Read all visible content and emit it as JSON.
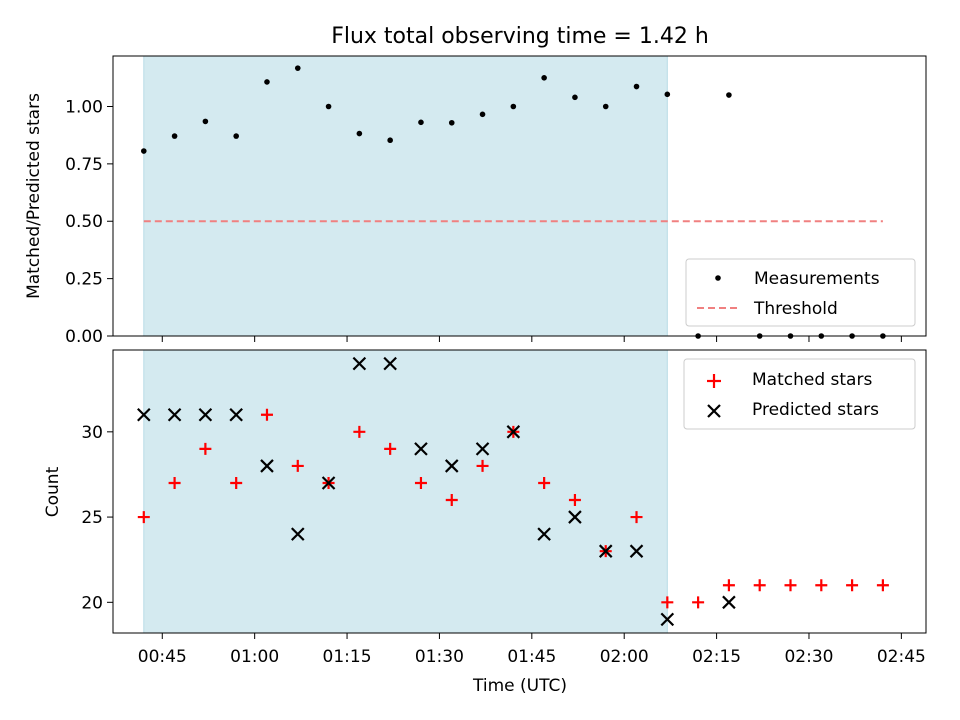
{
  "figure": {
    "title": "Flux total observing time = 1.42 h",
    "xlabel": "Time (UTC)"
  },
  "chart_data": [
    {
      "type": "scatter",
      "ylabel": "Matched/Predicted stars",
      "ylim": [
        0,
        1.22
      ],
      "xlim": [
        "00:37",
        "02:49"
      ],
      "yticks": [
        {
          "v": 0,
          "label": "0.00"
        },
        {
          "v": 0.25,
          "label": "0.25"
        },
        {
          "v": 0.5,
          "label": "0.50"
        },
        {
          "v": 0.75,
          "label": "0.75"
        },
        {
          "v": 1.0,
          "label": "1.00"
        }
      ],
      "shaded_interval": {
        "start": "00:42",
        "end": "02:07",
        "color": "#d4eaf0"
      },
      "series": [
        {
          "name": "Measurements",
          "marker": "dot",
          "color": "#000000",
          "x": [
            "00:42",
            "00:47",
            "00:52",
            "00:57",
            "01:02",
            "01:07",
            "01:12",
            "01:17",
            "01:22",
            "01:27",
            "01:32",
            "01:37",
            "01:42",
            "01:47",
            "01:52",
            "01:57",
            "02:02",
            "02:07",
            "02:12",
            "02:17",
            "02:22",
            "02:27",
            "02:32",
            "02:37",
            "02:42"
          ],
          "y": [
            0.806,
            0.871,
            0.935,
            0.871,
            1.107,
            1.167,
            1.0,
            0.882,
            0.853,
            0.931,
            0.929,
            0.966,
            1.0,
            1.125,
            1.04,
            1.0,
            1.087,
            1.053,
            0,
            1.05,
            0,
            0,
            0,
            0,
            0
          ]
        },
        {
          "name": "Threshold",
          "style": "dashed",
          "color": "#f08080",
          "x": [
            "00:42",
            "02:42"
          ],
          "y": [
            0.5,
            0.5
          ]
        }
      ],
      "legend": {
        "position": "lower-right"
      }
    },
    {
      "type": "scatter",
      "ylabel": "Count",
      "ylim": [
        18.2,
        34.8
      ],
      "xlim": [
        "00:37",
        "02:49"
      ],
      "yticks": [
        {
          "v": 20,
          "label": "20"
        },
        {
          "v": 25,
          "label": "25"
        },
        {
          "v": 30,
          "label": "30"
        }
      ],
      "xticks": [
        "00:45",
        "01:00",
        "01:15",
        "01:30",
        "01:45",
        "02:00",
        "02:15",
        "02:30",
        "02:45"
      ],
      "shaded_interval": {
        "start": "00:42",
        "end": "02:07",
        "color": "#d4eaf0"
      },
      "series": [
        {
          "name": "Matched stars",
          "marker": "plus",
          "color": "#ff0000",
          "x": [
            "00:42",
            "00:47",
            "00:52",
            "00:57",
            "01:02",
            "01:07",
            "01:12",
            "01:17",
            "01:22",
            "01:27",
            "01:32",
            "01:37",
            "01:42",
            "01:47",
            "01:52",
            "01:57",
            "02:02",
            "02:07",
            "02:12",
            "02:17",
            "02:22",
            "02:27",
            "02:32",
            "02:37",
            "02:42"
          ],
          "y": [
            25,
            27,
            29,
            27,
            31,
            28,
            27,
            30,
            29,
            27,
            26,
            28,
            30,
            27,
            26,
            23,
            25,
            20,
            20,
            21,
            21,
            21,
            21,
            21,
            21
          ]
        },
        {
          "name": "Predicted stars",
          "marker": "x",
          "color": "#000000",
          "x": [
            "00:42",
            "00:47",
            "00:52",
            "00:57",
            "01:02",
            "01:07",
            "01:12",
            "01:17",
            "01:22",
            "01:27",
            "01:32",
            "01:37",
            "01:42",
            "01:47",
            "01:52",
            "01:57",
            "02:02",
            "02:07",
            "02:17"
          ],
          "y": [
            31,
            31,
            31,
            31,
            28,
            24,
            27,
            34,
            34,
            29,
            28,
            29,
            30,
            24,
            25,
            23,
            23,
            19,
            20
          ]
        }
      ],
      "legend": {
        "position": "top-right"
      }
    }
  ]
}
